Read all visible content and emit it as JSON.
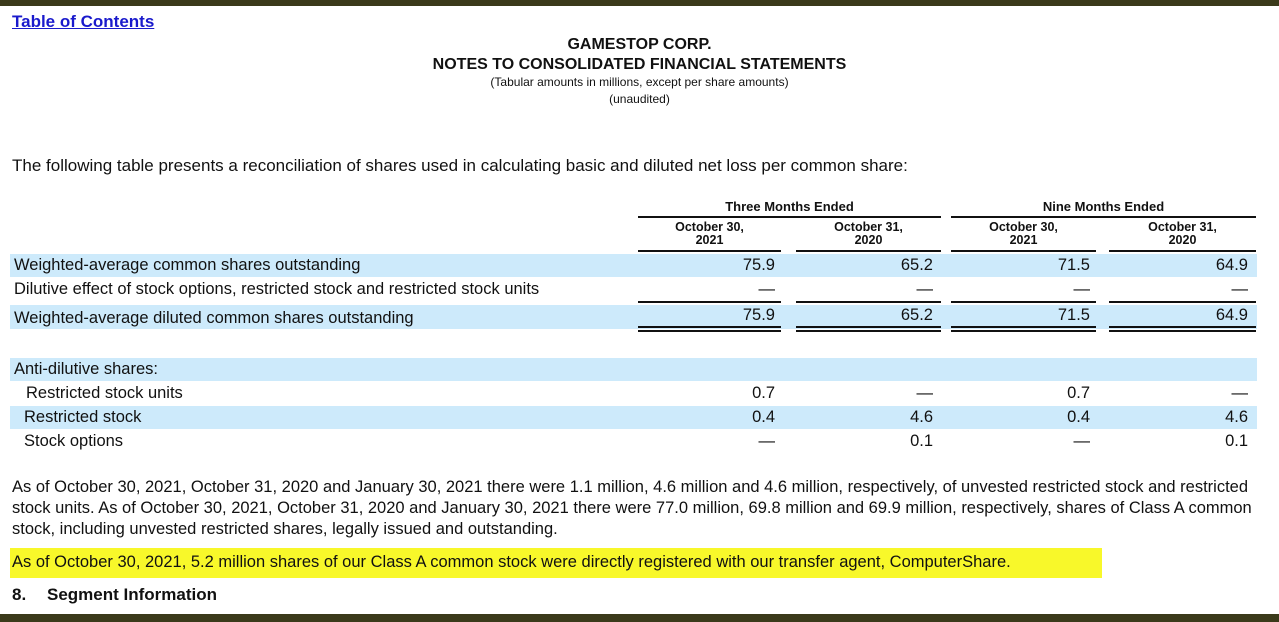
{
  "nav": {
    "toc_link": "Table of Contents"
  },
  "header": {
    "company": "GAMESTOP CORP.",
    "title": "NOTES TO CONSOLIDATED FINANCIAL STATEMENTS",
    "subtitle": "(Tabular amounts in millions, except per share amounts)",
    "unaudited": "(unaudited)"
  },
  "intro": "The following table presents a reconciliation of shares used in calculating basic and diluted net loss per common share:",
  "table": {
    "groups": [
      "Three Months Ended",
      "Nine Months Ended"
    ],
    "columns": [
      {
        "line1": "October 30,",
        "line2": "2021"
      },
      {
        "line1": "October 31,",
        "line2": "2020"
      },
      {
        "line1": "October 30,",
        "line2": "2021"
      },
      {
        "line1": "October 31,",
        "line2": "2020"
      }
    ],
    "rows": [
      {
        "label": "Weighted-average common shares outstanding",
        "values": [
          "75.9",
          "65.2",
          "71.5",
          "64.9"
        ]
      },
      {
        "label": "Dilutive effect of stock options, restricted stock and restricted stock units",
        "values": [
          "—",
          "—",
          "—",
          "—"
        ]
      },
      {
        "label": "Weighted-average diluted common shares outstanding",
        "values": [
          "75.9",
          "65.2",
          "71.5",
          "64.9"
        ]
      }
    ],
    "anti_dilutive_heading": "Anti-dilutive shares:",
    "anti_rows": [
      {
        "label": "Restricted stock units",
        "values": [
          "0.7",
          "—",
          "0.7",
          "—"
        ]
      },
      {
        "label": "Restricted stock",
        "values": [
          "0.4",
          "4.6",
          "0.4",
          "4.6"
        ]
      },
      {
        "label": "Stock options",
        "values": [
          "—",
          "0.1",
          "—",
          "0.1"
        ]
      }
    ]
  },
  "paragraph": "As of October 30, 2021, October 31, 2020 and January 30, 2021 there were 1.1 million, 4.6 million and 4.6 million, respectively, of unvested restricted stock and restricted stock units. As of October 30, 2021, October 31, 2020 and January 30, 2021 there were 77.0 million, 69.8 million and 69.9 million, respectively, shares of Class A common stock, including unvested restricted shares, legally issued and outstanding.",
  "highlighted": "As of October 30, 2021, 5.2 million shares of our Class A common stock were directly registered with our transfer agent, ComputerShare.",
  "section": {
    "number": "8.",
    "title": "Segment Information"
  },
  "colors": {
    "row_highlight": "#cdeafb",
    "text_highlight": "#f8f82a",
    "link": "#1a1acc",
    "frame": "#3b3a1a"
  }
}
